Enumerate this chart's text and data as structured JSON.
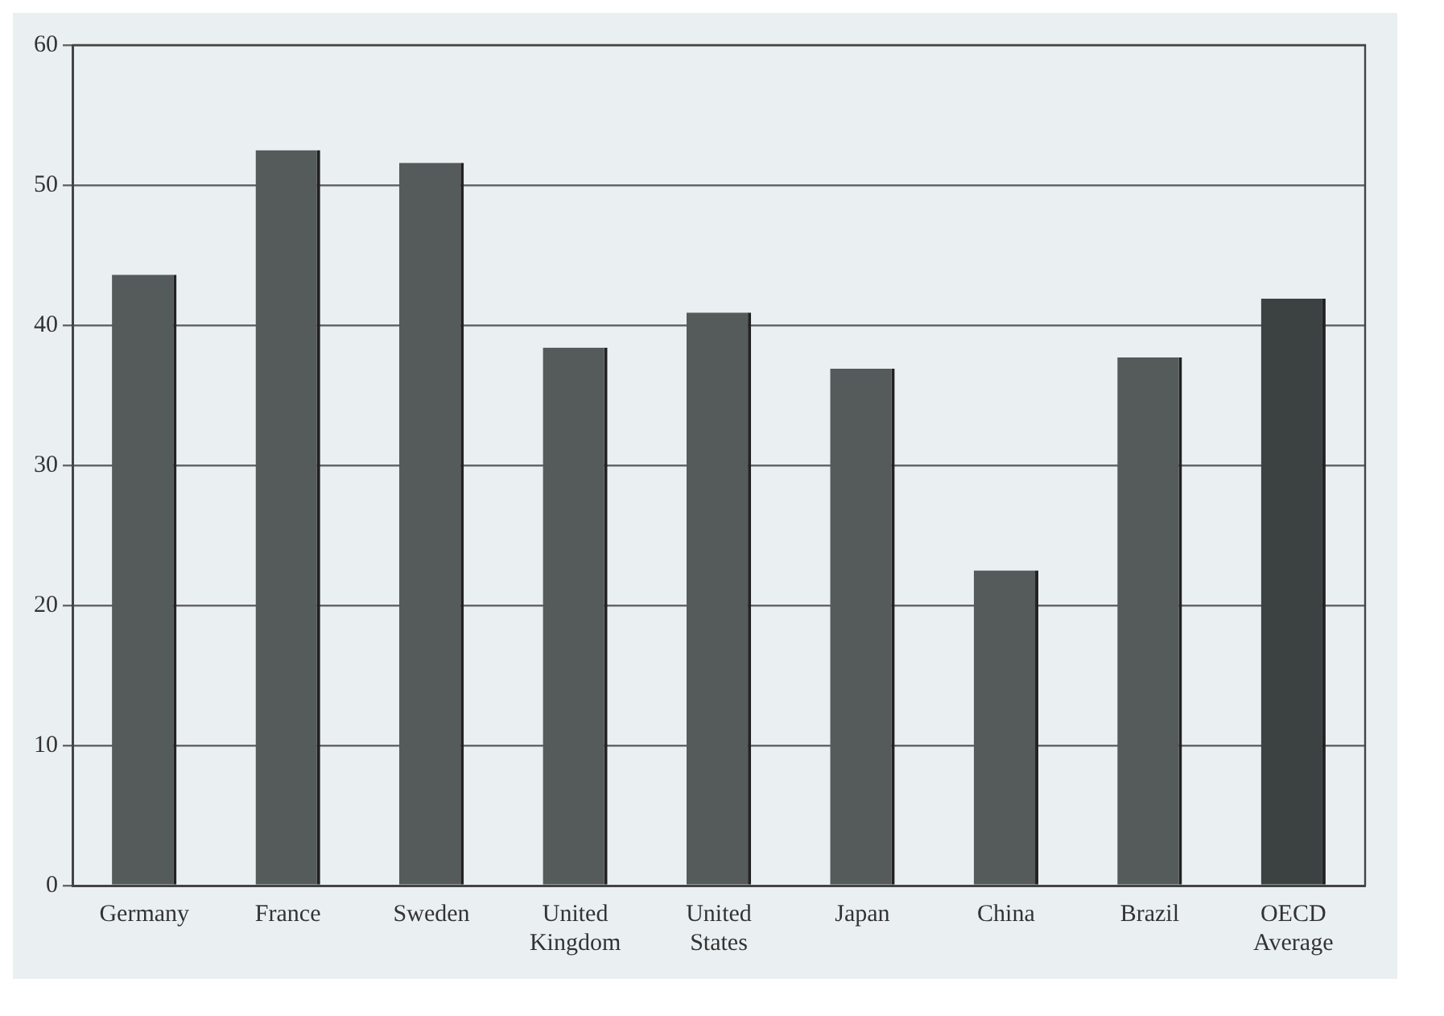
{
  "chart_data": {
    "type": "bar",
    "categories": [
      "Germany",
      "France",
      "Sweden",
      "United Kingdom",
      "United States",
      "Japan",
      "China",
      "Brazil",
      "OECD Average"
    ],
    "values": [
      43.6,
      52.5,
      51.6,
      38.4,
      40.9,
      36.9,
      22.5,
      37.7,
      41.9
    ],
    "colors": [
      "#555a5a",
      "#555a5a",
      "#555a5a",
      "#555a5a",
      "#555a5a",
      "#555a5a",
      "#555a5a",
      "#555a5a",
      "#3c4242"
    ],
    "ylim": [
      0,
      60
    ],
    "yticks": [
      0,
      10,
      20,
      30,
      40,
      50,
      60
    ],
    "grid": "y",
    "legend": false
  }
}
